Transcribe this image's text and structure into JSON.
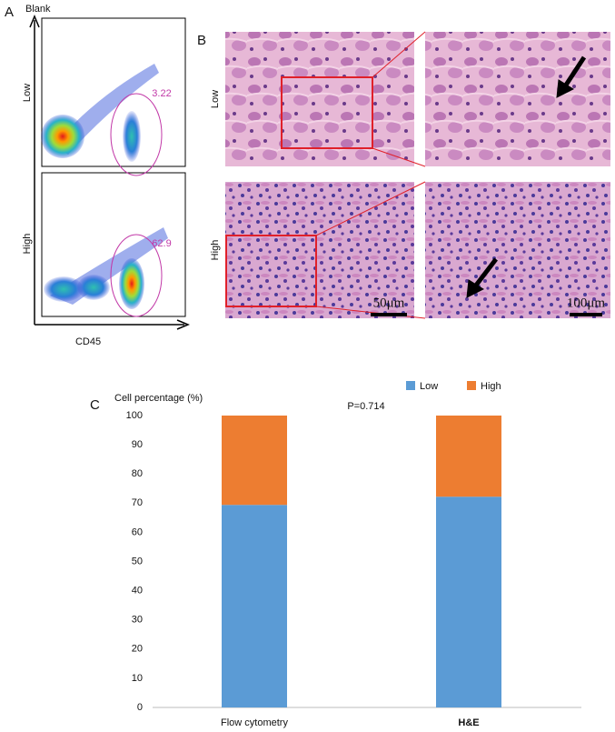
{
  "panel_a": {
    "label": "A",
    "y_axis": "Blank",
    "x_axis": "CD45",
    "rows": [
      {
        "name": "Low",
        "gate": 3.22
      },
      {
        "name": "High",
        "gate": 62.9
      }
    ]
  },
  "panel_b": {
    "label": "B",
    "rows": [
      "Low",
      "High"
    ],
    "scale_bars": [
      "50μm",
      "100μm"
    ]
  },
  "chart_data": {
    "type": "stacked_bar",
    "panel_label": "C",
    "y_label": "Cell percentage (%)",
    "annotation": "P=0.714",
    "categories": [
      "Flow cytometry",
      "H&E"
    ],
    "series": [
      {
        "name": "Low",
        "color": "#5b9bd5",
        "values": [
          69.4,
          72.2
        ]
      },
      {
        "name": "High",
        "color": "#ed7d31",
        "values": [
          30.6,
          27.8
        ]
      }
    ],
    "ylim": [
      0,
      100
    ],
    "yticks": [
      0,
      10,
      20,
      30,
      40,
      50,
      60,
      70,
      80,
      90,
      100
    ],
    "legend": "top-right"
  }
}
